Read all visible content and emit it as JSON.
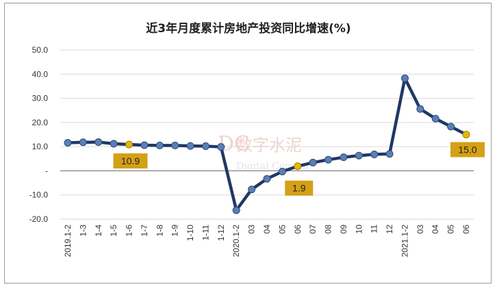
{
  "chart_data": {
    "type": "line",
    "title": "近3年月度累计房地产投资同比增速(%)",
    "xlabel": "",
    "ylabel": "",
    "ylim": [
      -20,
      50
    ],
    "yticks": [
      "50.0",
      "40.0",
      "30.0",
      "20.0",
      "10.0",
      "-",
      "-10.0",
      "-20.0"
    ],
    "grid": true,
    "categories": [
      "2019.1-2",
      "1-3",
      "1-4",
      "1-5",
      "1-6",
      "1-7",
      "1-8",
      "1-9",
      "1-10",
      "1-11",
      "1-12",
      "2020.1-2",
      "03",
      "04",
      "05",
      "06",
      "07",
      "08",
      "09",
      "10",
      "11",
      "12",
      "2021.1-2",
      "03",
      "04",
      "05",
      "06"
    ],
    "values": [
      11.6,
      11.8,
      11.9,
      11.2,
      10.9,
      10.6,
      10.5,
      10.5,
      10.3,
      10.2,
      9.9,
      -16.3,
      -7.7,
      -3.3,
      -0.3,
      1.9,
      3.4,
      4.6,
      5.6,
      6.3,
      6.8,
      7.0,
      38.3,
      25.6,
      21.6,
      18.3,
      15.0
    ],
    "highlighted": [
      {
        "index": 4,
        "label": "10.9"
      },
      {
        "index": 15,
        "label": "1.9"
      },
      {
        "index": 26,
        "label": "15.0"
      }
    ],
    "line_color": "#1f3864",
    "marker_color": "#5b7fb5",
    "highlight_color": "#e6b800",
    "callout_bg": "#d4a017"
  },
  "watermark": {
    "main": "数字水泥",
    "sub": "Digital Cement",
    "logo": "DC"
  }
}
